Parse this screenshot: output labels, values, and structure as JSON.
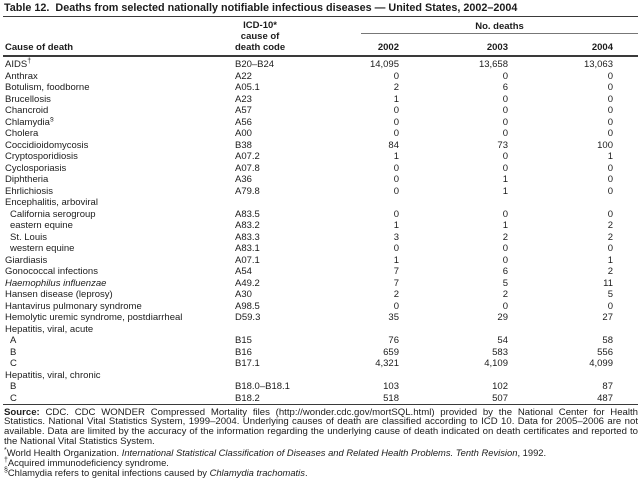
{
  "title": "Table 12.  Deaths from selected nationally notifiable infectious diseases — United States, 2002–2004",
  "table": {
    "col_headers": {
      "cause": "Cause of death",
      "code_lines": [
        "ICD-10*",
        "cause of",
        "death code"
      ],
      "spanner": "No. deaths",
      "years": [
        "2002",
        "2003",
        "2004"
      ]
    },
    "rows": [
      {
        "cause": "AIDS",
        "sup": "†",
        "code": "B20–B24",
        "v": [
          "14,095",
          "13,658",
          "13,063"
        ]
      },
      {
        "cause": "Anthrax",
        "code": "A22",
        "v": [
          "0",
          "0",
          "0"
        ]
      },
      {
        "cause": "Botulism, foodborne",
        "code": "A05.1",
        "v": [
          "2",
          "6",
          "0"
        ]
      },
      {
        "cause": "Brucellosis",
        "code": "A23",
        "v": [
          "1",
          "0",
          "0"
        ]
      },
      {
        "cause": "Chancroid",
        "code": "A57",
        "v": [
          "0",
          "0",
          "0"
        ]
      },
      {
        "cause": "Chlamydia",
        "sup": "§",
        "code": "A56",
        "v": [
          "0",
          "0",
          "0"
        ]
      },
      {
        "cause": "Cholera",
        "code": "A00",
        "v": [
          "0",
          "0",
          "0"
        ]
      },
      {
        "cause": "Coccidioidomycosis",
        "code": "B38",
        "v": [
          "84",
          "73",
          "100"
        ]
      },
      {
        "cause": "Cryptosporidiosis",
        "code": "A07.2",
        "v": [
          "1",
          "0",
          "1"
        ]
      },
      {
        "cause": "Cyclosporiasis",
        "code": "A07.8",
        "v": [
          "0",
          "0",
          "0"
        ]
      },
      {
        "cause": "Diphtheria",
        "code": "A36",
        "v": [
          "0",
          "1",
          "0"
        ]
      },
      {
        "cause": "Ehrlichiosis",
        "code": "A79.8",
        "v": [
          "0",
          "1",
          "0"
        ]
      },
      {
        "cause": "Encephalitis, arboviral",
        "group": true
      },
      {
        "cause": "California serogroup",
        "indent": true,
        "code": "A83.5",
        "v": [
          "0",
          "0",
          "0"
        ]
      },
      {
        "cause": "eastern equine",
        "indent": true,
        "code": "A83.2",
        "v": [
          "1",
          "1",
          "2"
        ]
      },
      {
        "cause": "St. Louis",
        "indent": true,
        "code": "A83.3",
        "v": [
          "3",
          "2",
          "2"
        ]
      },
      {
        "cause": "western equine",
        "indent": true,
        "code": "A83.1",
        "v": [
          "0",
          "0",
          "0"
        ]
      },
      {
        "cause": "Giardiasis",
        "code": "A07.1",
        "v": [
          "1",
          "0",
          "1"
        ]
      },
      {
        "cause": "Gonococcal infections",
        "code": "A54",
        "v": [
          "7",
          "6",
          "2"
        ]
      },
      {
        "cause": "Haemophilus influenzae",
        "italic": true,
        "code": "A49.2",
        "v": [
          "7",
          "5",
          "11"
        ]
      },
      {
        "cause": "Hansen disease (leprosy)",
        "code": "A30",
        "v": [
          "2",
          "2",
          "5"
        ]
      },
      {
        "cause": "Hantavirus pulmonary syndrome",
        "code": "A98.5",
        "v": [
          "0",
          "0",
          "0"
        ]
      },
      {
        "cause": "Hemolytic uremic syndrome, postdiarrheal",
        "code": "D59.3",
        "v": [
          "35",
          "29",
          "27"
        ]
      },
      {
        "cause": "Hepatitis, viral, acute",
        "group": true
      },
      {
        "cause": "A",
        "indent": true,
        "code": "B15",
        "v": [
          "76",
          "54",
          "58"
        ]
      },
      {
        "cause": "B",
        "indent": true,
        "code": "B16",
        "v": [
          "659",
          "583",
          "556"
        ]
      },
      {
        "cause": "C",
        "indent": true,
        "code": "B17.1",
        "v": [
          "4,321",
          "4,109",
          "4,099"
        ]
      },
      {
        "cause": "Hepatitis, viral, chronic",
        "group": true
      },
      {
        "cause": "B",
        "indent": true,
        "code": "B18.0–B18.1",
        "v": [
          "103",
          "102",
          "87"
        ]
      },
      {
        "cause": "C",
        "indent": true,
        "code": "B18.2",
        "v": [
          "518",
          "507",
          "487"
        ]
      }
    ]
  },
  "source": {
    "label": "Source:",
    "text": "CDC. CDC WONDER Compressed Mortality files (http://wonder.cdc.gov/mortSQL.html) provided by the National Center for Health Statistics. National Vital Statistics System, 1999–2004. Underlying causes of death are classified according to ICD 10. Data for 2005–2006 are not available. Data are limited by the accuracy of the information regarding the underlying cause of death indicated on death certificates and reported to the National Vital Statistics System."
  },
  "footnotes": [
    {
      "symbol": "*",
      "pre": "World Health Organization. ",
      "italic": "International Statistical Classification of Diseases and Related Health Problems. Tenth Revision",
      "post": ", 1992."
    },
    {
      "symbol": "†",
      "pre": "Acquired immunodeficiency syndrome.",
      "italic": "",
      "post": ""
    },
    {
      "symbol": "§",
      "pre": "Chlamydia refers to genital infections caused by ",
      "italic": "Chlamydia trachomatis",
      "post": "."
    }
  ]
}
